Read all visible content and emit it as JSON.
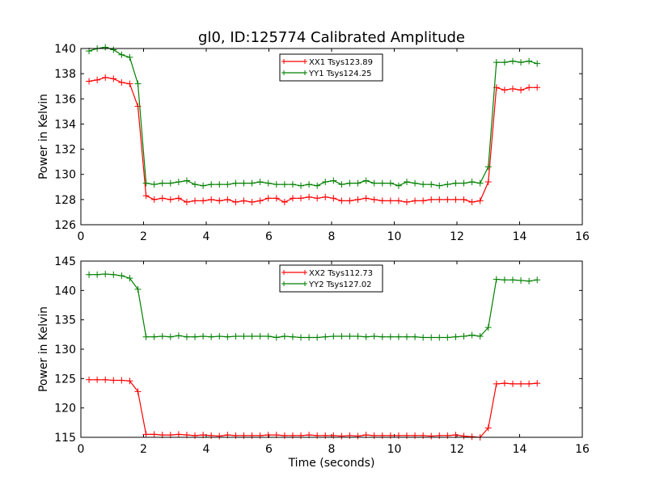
{
  "figure": {
    "title": "gl0, ID:125774 Calibrated Amplitude",
    "xlabel": "Time (seconds)"
  },
  "chart_data": [
    {
      "type": "line",
      "ylabel": "Power in Kelvin",
      "xlim": [
        0,
        16
      ],
      "ylim": [
        126,
        140
      ],
      "xticks": [
        "0",
        "2",
        "4",
        "6",
        "8",
        "10",
        "12",
        "14",
        "16"
      ],
      "yticks": [
        "126",
        "128",
        "130",
        "132",
        "134",
        "136",
        "138",
        "140"
      ],
      "grid": false,
      "legend_position": "top-center",
      "x": [
        0.26,
        0.52,
        0.78,
        1.04,
        1.3,
        1.56,
        1.82,
        2.08,
        2.34,
        2.6,
        2.86,
        3.12,
        3.38,
        3.64,
        3.9,
        4.16,
        4.42,
        4.68,
        4.94,
        5.2,
        5.46,
        5.72,
        5.98,
        6.24,
        6.5,
        6.76,
        7.02,
        7.28,
        7.54,
        7.8,
        8.06,
        8.32,
        8.58,
        8.84,
        9.1,
        9.36,
        9.62,
        9.88,
        10.14,
        10.4,
        10.66,
        10.92,
        11.18,
        11.44,
        11.7,
        11.96,
        12.22,
        12.48,
        12.74,
        13.0,
        13.26,
        13.52,
        13.78,
        14.04,
        14.3,
        14.56
      ],
      "series": [
        {
          "name": "XX1 Tsys123.89",
          "color": "#ff0000",
          "values": [
            137.4,
            137.5,
            137.7,
            137.6,
            137.3,
            137.2,
            135.4,
            128.3,
            128.0,
            128.1,
            128.0,
            128.1,
            127.8,
            127.9,
            127.9,
            128.0,
            127.9,
            128.0,
            127.8,
            127.9,
            127.8,
            127.9,
            128.1,
            128.1,
            127.8,
            128.1,
            128.1,
            128.2,
            128.1,
            128.2,
            128.1,
            127.9,
            127.9,
            128.0,
            128.1,
            128.0,
            127.9,
            127.9,
            127.9,
            127.8,
            127.9,
            127.9,
            128.0,
            128.0,
            128.0,
            128.0,
            128.0,
            127.8,
            127.9,
            129.4,
            136.9,
            136.7,
            136.8,
            136.7,
            136.9,
            136.9
          ]
        },
        {
          "name": "YY1 Tsys124.25",
          "color": "#008000",
          "values": [
            139.8,
            140.0,
            140.1,
            139.9,
            139.5,
            139.3,
            137.2,
            129.3,
            129.2,
            129.3,
            129.3,
            129.4,
            129.5,
            129.2,
            129.1,
            129.2,
            129.2,
            129.2,
            129.3,
            129.3,
            129.3,
            129.4,
            129.3,
            129.2,
            129.2,
            129.2,
            129.1,
            129.2,
            129.1,
            129.4,
            129.5,
            129.2,
            129.3,
            129.3,
            129.5,
            129.3,
            129.3,
            129.3,
            129.1,
            129.4,
            129.3,
            129.2,
            129.2,
            129.1,
            129.2,
            129.3,
            129.3,
            129.4,
            129.3,
            130.6,
            138.9,
            138.9,
            139.0,
            138.9,
            139.0,
            138.8
          ]
        }
      ]
    },
    {
      "type": "line",
      "ylabel": "Power in Kelvin",
      "xlabel": "Time (seconds)",
      "xlim": [
        0,
        16
      ],
      "ylim": [
        115,
        145
      ],
      "xticks": [
        "0",
        "2",
        "4",
        "6",
        "8",
        "10",
        "12",
        "14",
        "16"
      ],
      "yticks": [
        "115",
        "120",
        "125",
        "130",
        "135",
        "140",
        "145"
      ],
      "grid": false,
      "legend_position": "top-center",
      "x": [
        0.26,
        0.52,
        0.78,
        1.04,
        1.3,
        1.56,
        1.82,
        2.08,
        2.34,
        2.6,
        2.86,
        3.12,
        3.38,
        3.64,
        3.9,
        4.16,
        4.42,
        4.68,
        4.94,
        5.2,
        5.46,
        5.72,
        5.98,
        6.24,
        6.5,
        6.76,
        7.02,
        7.28,
        7.54,
        7.8,
        8.06,
        8.32,
        8.58,
        8.84,
        9.1,
        9.36,
        9.62,
        9.88,
        10.14,
        10.4,
        10.66,
        10.92,
        11.18,
        11.44,
        11.7,
        11.96,
        12.22,
        12.48,
        12.74,
        13.0,
        13.26,
        13.52,
        13.78,
        14.04,
        14.3,
        14.56
      ],
      "series": [
        {
          "name": "XX2 Tsys112.73",
          "color": "#ff0000",
          "values": [
            124.8,
            124.8,
            124.8,
            124.7,
            124.7,
            124.6,
            122.8,
            115.5,
            115.5,
            115.4,
            115.4,
            115.5,
            115.4,
            115.3,
            115.4,
            115.3,
            115.2,
            115.4,
            115.3,
            115.3,
            115.3,
            115.3,
            115.4,
            115.4,
            115.3,
            115.3,
            115.3,
            115.4,
            115.3,
            115.3,
            115.3,
            115.2,
            115.3,
            115.2,
            115.4,
            115.3,
            115.3,
            115.3,
            115.3,
            115.3,
            115.3,
            115.3,
            115.2,
            115.3,
            115.3,
            115.4,
            115.2,
            115.1,
            115.0,
            116.6,
            124.1,
            124.2,
            124.1,
            124.1,
            124.1,
            124.2
          ]
        },
        {
          "name": "YY2 Tsys127.02",
          "color": "#008000",
          "values": [
            142.7,
            142.7,
            142.8,
            142.7,
            142.5,
            142.1,
            140.2,
            132.1,
            132.1,
            132.2,
            132.1,
            132.3,
            132.1,
            132.1,
            132.2,
            132.1,
            132.2,
            132.1,
            132.2,
            132.2,
            132.2,
            132.2,
            132.2,
            132.0,
            132.2,
            132.1,
            132.0,
            132.0,
            132.0,
            132.1,
            132.2,
            132.2,
            132.2,
            132.2,
            132.1,
            132.2,
            132.1,
            132.1,
            132.1,
            132.1,
            132.1,
            132.0,
            132.0,
            132.0,
            132.0,
            132.1,
            132.2,
            132.4,
            132.2,
            133.7,
            141.9,
            141.8,
            141.8,
            141.7,
            141.6,
            141.8
          ]
        }
      ]
    }
  ]
}
